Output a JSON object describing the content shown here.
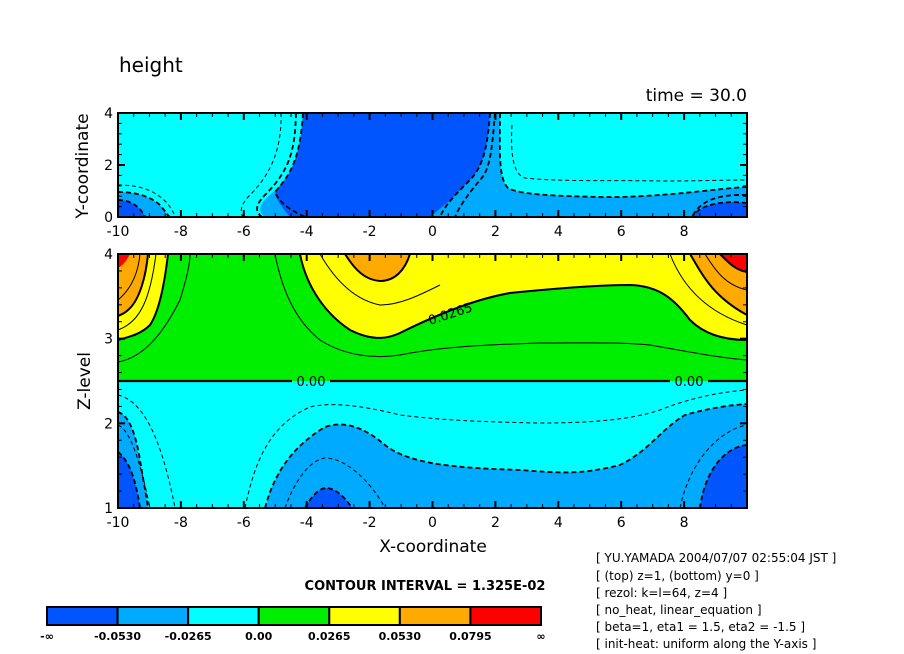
{
  "chart_data": {
    "type": "heatmap",
    "title": "height",
    "time_label": "time = 30.0",
    "contour_interval_text": "CONTOUR INTERVAL = 1.325E-02",
    "panels": [
      {
        "name": "top",
        "ylabel": "Y-coordinate",
        "xlim": [
          -10,
          10
        ],
        "ylim": [
          0,
          4
        ],
        "x_ticks": [
          "-10",
          "-8",
          "-6",
          "-4",
          "-2",
          "0",
          "2",
          "4",
          "6",
          "8"
        ],
        "y_ticks": [
          "0",
          "2",
          "4"
        ]
      },
      {
        "name": "bottom",
        "xlabel": "X-coordinate",
        "ylabel": "Z-level",
        "xlim": [
          -10,
          10
        ],
        "ylim": [
          1,
          4
        ],
        "x_ticks": [
          "-10",
          "-8",
          "-6",
          "-4",
          "-2",
          "0",
          "2",
          "4",
          "6",
          "8"
        ],
        "y_ticks": [
          "1",
          "2",
          "3",
          "4"
        ],
        "contour_labels": [
          "0.0265",
          "0.00",
          "0.00"
        ]
      }
    ],
    "colorbar": {
      "levels": [
        "-∞",
        "-0.0530",
        "-0.0265",
        "0.00",
        "0.0265",
        "0.0530",
        "0.0795",
        "∞"
      ],
      "colors": [
        "#0055ff",
        "#00aaff",
        "#00ffff",
        "#00ee00",
        "#ffff00",
        "#ffaa00",
        "#ff0000"
      ]
    },
    "info_lines": [
      "[ YU.YAMADA 2004/07/07 02:55:04 JST ]",
      "[ (top) z=1, (bottom) y=0 ]",
      "[ rezol: k=l=64, z=4 ]",
      "[ no_heat, linear_equation ]",
      "[ beta=1, eta1 = 1.5, eta2 = -1.5 ]",
      "[ init-heat: uniform along the Y-axis ]"
    ]
  }
}
